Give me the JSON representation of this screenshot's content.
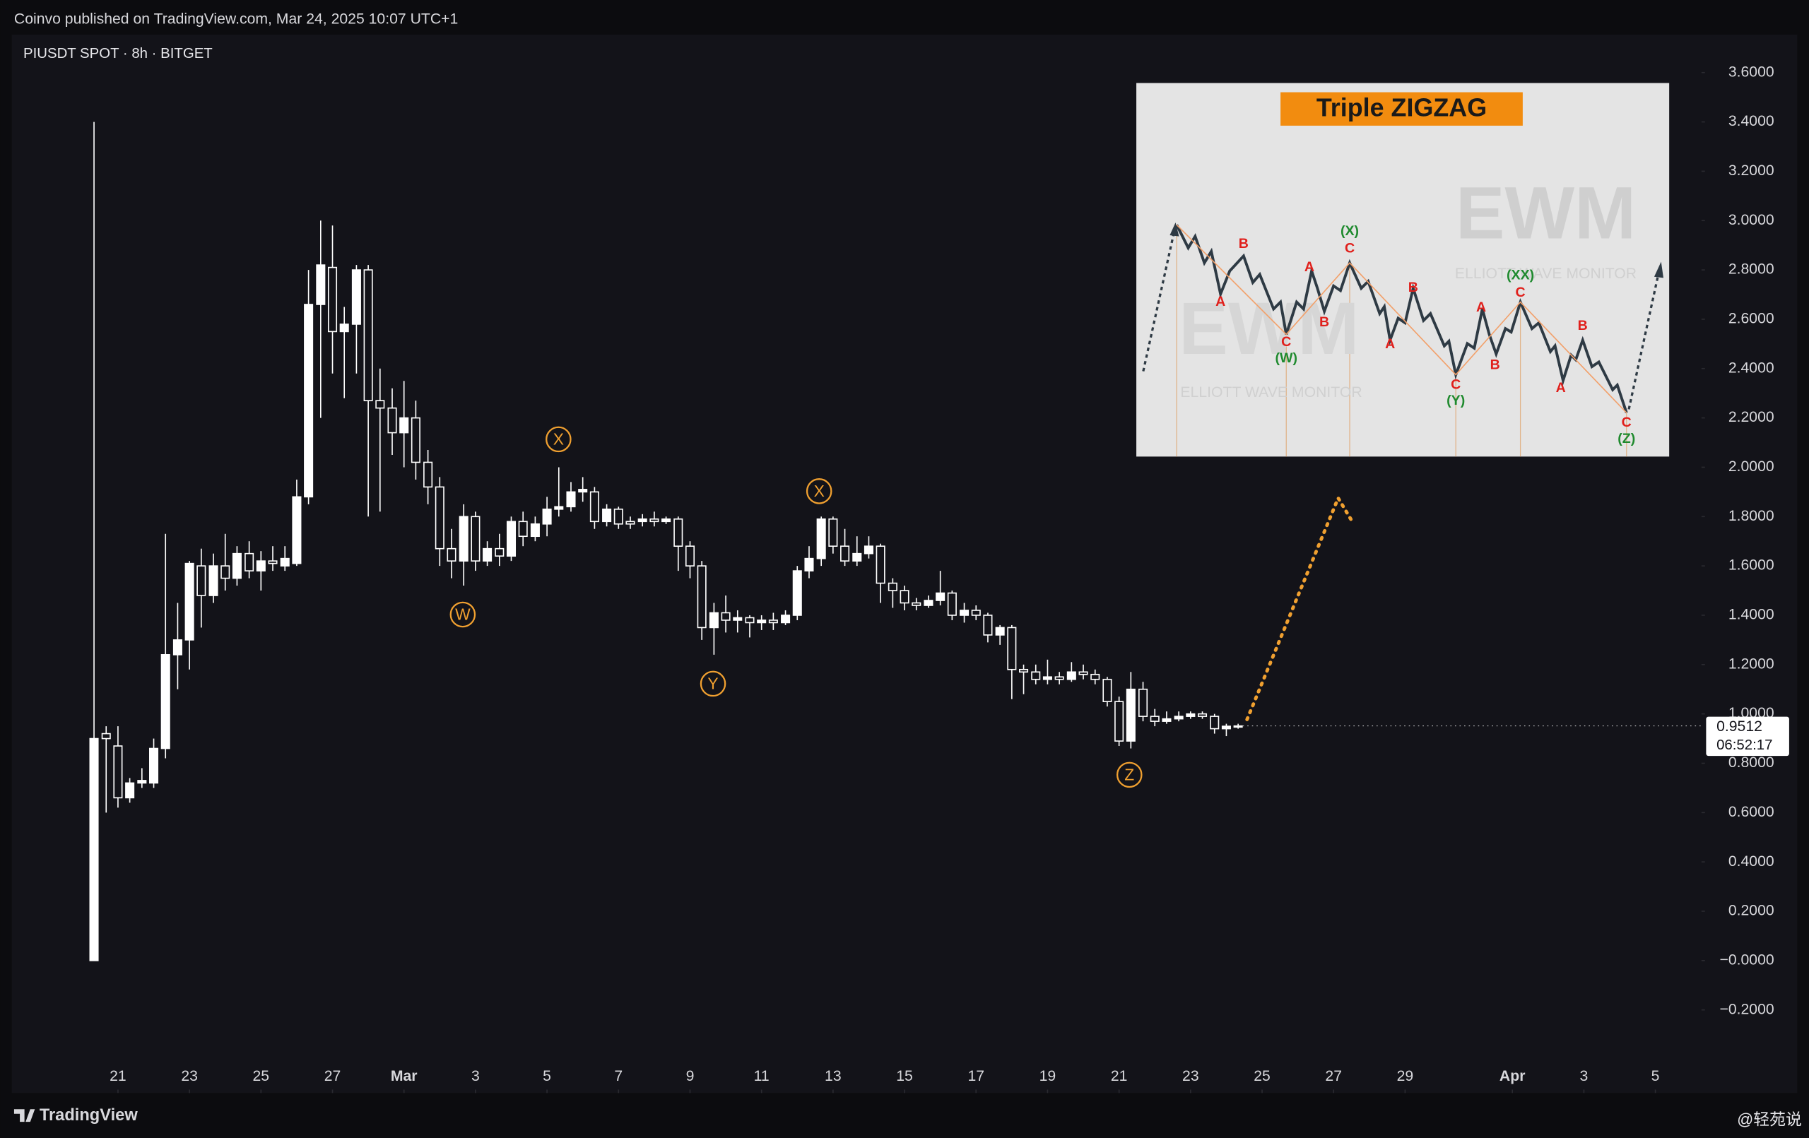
{
  "header": "Coinvo published on TradingView.com, Mar 24, 2025 10:07 UTC+1",
  "footer": {
    "brand": "TradingView",
    "watermark": "@轻苑说"
  },
  "chart_data": {
    "type": "candlestick",
    "title": "PIUSDT SPOT · 8h · BITGET",
    "up_color": "#ffffff",
    "down_color": "#131319",
    "wick_color": "#ffffff",
    "grid": false,
    "x": [
      20.33,
      20.67,
      21,
      21.33,
      21.67,
      22,
      22.33,
      22.67,
      23,
      23.33,
      23.67,
      24,
      24.33,
      24.67,
      25,
      25.33,
      25.67,
      26,
      26.33,
      26.67,
      27,
      27.33,
      27.67,
      28,
      28.33,
      28.67,
      29,
      29.33,
      29.67,
      30,
      30.33,
      30.67,
      31,
      31.33,
      31.67,
      32,
      32.33,
      32.67,
      33,
      33.33,
      33.67,
      34,
      34.33,
      34.67,
      35,
      35.33,
      35.67,
      36,
      36.33,
      36.67,
      37,
      37.33,
      37.67,
      38,
      38.33,
      38.67,
      39,
      39.33,
      39.67,
      40,
      40.33,
      40.67,
      41,
      41.33,
      41.67,
      42,
      42.33,
      42.67,
      43,
      43.33,
      43.67,
      44,
      44.33,
      44.67,
      45,
      45.33,
      45.67,
      46,
      46.33,
      46.67,
      47,
      47.33,
      47.67,
      48,
      48.33,
      48.67,
      49,
      49.33,
      49.67,
      50,
      50.33,
      50.67,
      51,
      51.33,
      51.67,
      52,
      52.33
    ],
    "open": [
      0.0,
      0.92,
      0.87,
      0.66,
      0.72,
      0.72,
      0.86,
      1.24,
      1.3,
      1.6,
      1.48,
      1.6,
      1.55,
      1.65,
      1.58,
      1.62,
      1.6,
      1.61,
      1.88,
      2.66,
      2.81,
      2.55,
      2.58,
      2.8,
      2.27,
      2.24,
      2.14,
      2.2,
      2.02,
      1.92,
      1.67,
      1.62,
      1.8,
      1.62,
      1.67,
      1.64,
      1.78,
      1.72,
      1.77,
      1.83,
      1.84,
      1.9,
      1.9,
      1.78,
      1.83,
      1.78,
      1.78,
      1.79,
      1.78,
      1.79,
      1.68,
      1.6,
      1.35,
      1.41,
      1.38,
      1.39,
      1.37,
      1.38,
      1.37,
      1.4,
      1.58,
      1.63,
      1.79,
      1.68,
      1.62,
      1.65,
      1.68,
      1.53,
      1.5,
      1.45,
      1.44,
      1.46,
      1.49,
      1.4,
      1.42,
      1.4,
      1.32,
      1.35,
      1.18,
      1.17,
      1.14,
      1.15,
      1.14,
      1.17,
      1.16,
      1.14,
      1.05,
      0.89,
      1.1,
      0.99,
      0.97,
      0.98,
      0.99,
      1.0,
      0.99,
      0.94,
      0.95
    ],
    "high": [
      3.4,
      0.95,
      0.95,
      0.74,
      0.78,
      0.9,
      1.73,
      1.45,
      1.62,
      1.67,
      1.65,
      1.73,
      1.68,
      1.7,
      1.66,
      1.68,
      1.68,
      1.95,
      2.8,
      3.0,
      2.98,
      2.65,
      2.82,
      2.82,
      2.4,
      2.32,
      2.35,
      2.27,
      2.07,
      1.96,
      1.75,
      1.85,
      1.82,
      1.7,
      1.73,
      1.8,
      1.82,
      1.8,
      1.88,
      2.0,
      1.94,
      1.96,
      1.92,
      1.85,
      1.84,
      1.8,
      1.81,
      1.82,
      1.8,
      1.8,
      1.7,
      1.62,
      1.45,
      1.48,
      1.42,
      1.4,
      1.4,
      1.41,
      1.42,
      1.6,
      1.68,
      1.8,
      1.8,
      1.75,
      1.72,
      1.72,
      1.69,
      1.55,
      1.52,
      1.47,
      1.48,
      1.58,
      1.5,
      1.45,
      1.44,
      1.41,
      1.36,
      1.36,
      1.2,
      1.2,
      1.22,
      1.17,
      1.21,
      1.2,
      1.18,
      1.15,
      1.07,
      1.17,
      1.13,
      1.02,
      1.01,
      1.01,
      1.01,
      1.01,
      1.0,
      0.96,
      0.96
    ],
    "low": [
      0.0,
      0.6,
      0.62,
      0.64,
      0.7,
      0.7,
      0.82,
      1.1,
      1.18,
      1.35,
      1.45,
      1.5,
      1.52,
      1.55,
      1.5,
      1.58,
      1.58,
      1.6,
      1.85,
      2.2,
      2.38,
      2.28,
      2.38,
      1.8,
      1.82,
      2.05,
      2.0,
      1.95,
      1.85,
      1.6,
      1.55,
      1.52,
      1.58,
      1.6,
      1.6,
      1.62,
      1.68,
      1.7,
      1.72,
      1.8,
      1.82,
      1.86,
      1.75,
      1.76,
      1.75,
      1.75,
      1.76,
      1.76,
      1.77,
      1.58,
      1.55,
      1.3,
      1.24,
      1.33,
      1.33,
      1.31,
      1.34,
      1.34,
      1.36,
      1.38,
      1.55,
      1.6,
      1.65,
      1.6,
      1.6,
      1.63,
      1.45,
      1.43,
      1.42,
      1.42,
      1.43,
      1.44,
      1.38,
      1.37,
      1.38,
      1.29,
      1.28,
      1.06,
      1.08,
      1.12,
      1.12,
      1.12,
      1.13,
      1.14,
      1.12,
      1.03,
      0.87,
      0.86,
      0.97,
      0.95,
      0.96,
      0.97,
      0.98,
      0.98,
      0.92,
      0.91,
      0.94
    ],
    "close": [
      0.9,
      0.9,
      0.66,
      0.72,
      0.73,
      0.86,
      1.24,
      1.3,
      1.61,
      1.48,
      1.6,
      1.55,
      1.65,
      1.58,
      1.62,
      1.61,
      1.63,
      1.88,
      2.66,
      2.82,
      2.55,
      2.58,
      2.8,
      2.27,
      2.24,
      2.14,
      2.2,
      2.02,
      1.92,
      1.67,
      1.62,
      1.8,
      1.62,
      1.67,
      1.64,
      1.78,
      1.72,
      1.77,
      1.83,
      1.84,
      1.9,
      1.91,
      1.78,
      1.83,
      1.77,
      1.77,
      1.79,
      1.78,
      1.79,
      1.68,
      1.6,
      1.35,
      1.41,
      1.38,
      1.39,
      1.37,
      1.38,
      1.37,
      1.4,
      1.58,
      1.63,
      1.79,
      1.68,
      1.62,
      1.65,
      1.68,
      1.53,
      1.5,
      1.45,
      1.44,
      1.46,
      1.49,
      1.4,
      1.42,
      1.4,
      1.32,
      1.35,
      1.18,
      1.17,
      1.14,
      1.15,
      1.14,
      1.17,
      1.16,
      1.14,
      1.05,
      0.89,
      1.1,
      0.99,
      0.97,
      0.98,
      0.99,
      1.0,
      0.99,
      0.94,
      0.95,
      0.9512
    ],
    "xlim": [
      18.03,
      65.29
    ],
    "xticks": [
      21,
      23,
      25,
      27,
      {
        "value": 29,
        "label": "Mar"
      },
      {
        "value": 31,
        "label": "3"
      },
      {
        "value": 33,
        "label": "5"
      },
      {
        "value": 35,
        "label": "7"
      },
      {
        "value": 37,
        "label": "9"
      },
      {
        "value": 39,
        "label": "11"
      },
      {
        "value": 41,
        "label": "13"
      },
      {
        "value": 43,
        "label": "15"
      },
      {
        "value": 45,
        "label": "17"
      },
      {
        "value": 47,
        "label": "19"
      },
      {
        "value": 49,
        "label": "21"
      },
      {
        "value": 51,
        "label": "23"
      },
      {
        "value": 53,
        "label": "25"
      },
      {
        "value": 55,
        "label": "27"
      },
      {
        "value": 57,
        "label": "29"
      },
      {
        "value": 60,
        "label": "Apr"
      },
      {
        "value": 62,
        "label": "3"
      },
      {
        "value": 64,
        "label": "5"
      }
    ],
    "ylim": [
      -0.537,
      3.754
    ],
    "yticks": [
      {
        "value": 3.6,
        "label": "3.6000"
      },
      {
        "value": 3.4,
        "label": "3.4000"
      },
      {
        "value": 3.2,
        "label": "3.2000"
      },
      {
        "value": 3.0,
        "label": "3.0000"
      },
      {
        "value": 2.8,
        "label": "2.8000"
      },
      {
        "value": 2.6,
        "label": "2.6000"
      },
      {
        "value": 2.4,
        "label": "2.4000"
      },
      {
        "value": 2.2,
        "label": "2.2000"
      },
      {
        "value": 2.0,
        "label": "2.0000"
      },
      {
        "value": 1.8,
        "label": "1.8000"
      },
      {
        "value": 1.6,
        "label": "1.6000"
      },
      {
        "value": 1.4,
        "label": "1.4000"
      },
      {
        "value": 1.2,
        "label": "1.2000"
      },
      {
        "value": 1.0,
        "label": "1.0000"
      },
      {
        "value": 0.8,
        "label": "0.8000"
      },
      {
        "value": 0.6,
        "label": "0.6000"
      },
      {
        "value": 0.4,
        "label": "0.4000"
      },
      {
        "value": 0.2,
        "label": "0.2000"
      },
      {
        "value": 0,
        "label": "−0.0000"
      },
      {
        "value": -0.2,
        "label": "−0.2000"
      }
    ],
    "last_price": 0.9512,
    "countdown": "06:52:17",
    "annotations": [
      "W",
      "X",
      "Y",
      "X",
      "Z"
    ],
    "annotation_color": "#f0a030"
  },
  "inset": {
    "title": "Triple ZIGZAG",
    "watermark": "ELLIOTT WAVE MONITOR",
    "logo": "EWM",
    "labels": [
      "A",
      "B",
      "C",
      "(W)",
      "A",
      "B",
      "(X)",
      "C",
      "A",
      "B",
      "C",
      "(Y)",
      "A",
      "B",
      "(XX)",
      "C",
      "A",
      "B",
      "C",
      "(Z)"
    ]
  }
}
